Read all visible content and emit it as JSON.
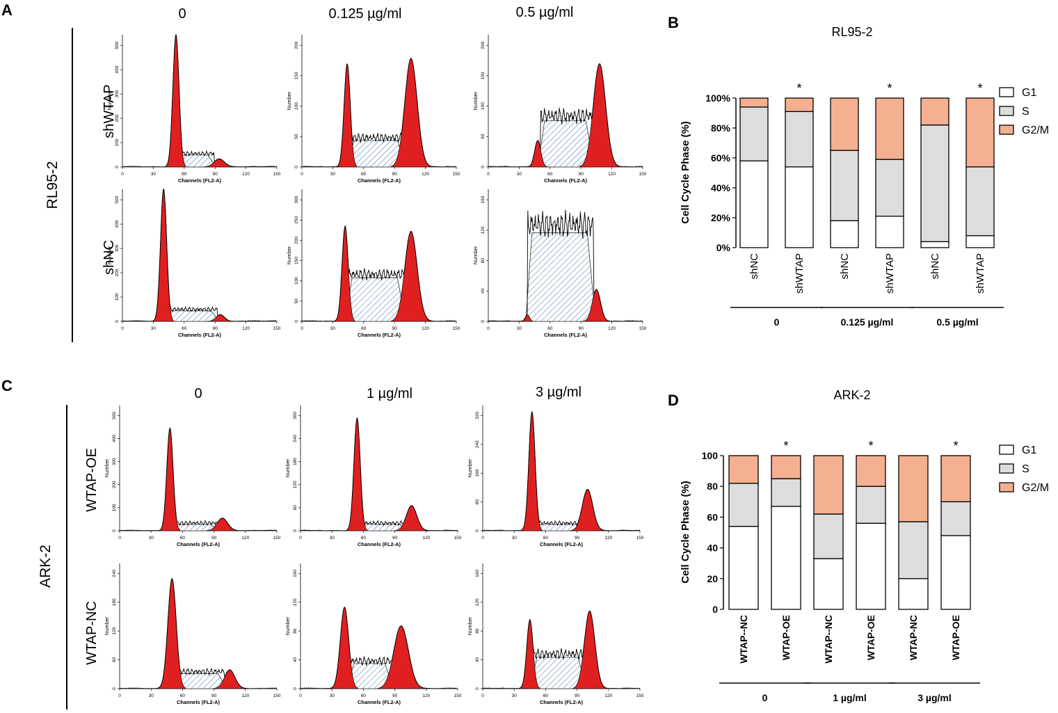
{
  "panels": {
    "a": {
      "letter": "A",
      "cell_line": "RL95-2",
      "columns": [
        "0",
        "0.125 µg/ml",
        "0.5 µg/ml"
      ],
      "rows": [
        "shWTAP",
        "shNC"
      ],
      "histograms": [
        {
          "row": 0,
          "col": 0,
          "peaks": [
            {
              "c": 52,
              "h": 1.0,
              "w": 3
            },
            {
              "c": 94,
              "h": 0.06,
              "w": 5
            }
          ],
          "plateau": 0.09,
          "sph": 0.02,
          "xticks": [
            0,
            30,
            60,
            90,
            120,
            150
          ],
          "yticks": [
            0,
            100,
            200,
            300,
            400,
            500
          ]
        },
        {
          "row": 0,
          "col": 1,
          "peaks": [
            {
              "c": 44,
              "h": 0.78,
              "w": 3
            },
            {
              "c": 106,
              "h": 0.82,
              "w": 6
            }
          ],
          "plateau": 0.2,
          "sph": 0.04,
          "xticks": [
            0,
            30,
            60,
            90,
            120,
            150
          ],
          "yticks": [
            0,
            50,
            100,
            150,
            200
          ]
        },
        {
          "row": 0,
          "col": 2,
          "peaks": [
            {
              "c": 48,
              "h": 0.2,
              "w": 3
            },
            {
              "c": 108,
              "h": 0.78,
              "w": 6
            }
          ],
          "plateau": 0.35,
          "sph": 0.07,
          "xticks": [
            0,
            30,
            60,
            90,
            120,
            150
          ],
          "yticks": [
            0,
            50,
            100,
            150,
            200
          ]
        },
        {
          "row": 1,
          "col": 0,
          "peaks": [
            {
              "c": 40,
              "h": 1.0,
              "w": 3
            },
            {
              "c": 95,
              "h": 0.05,
              "w": 4
            }
          ],
          "plateau": 0.08,
          "sph": 0.02,
          "xticks": [
            0,
            30,
            60,
            90,
            120,
            150
          ],
          "yticks": [
            0,
            100,
            200,
            300,
            400,
            500
          ]
        },
        {
          "row": 1,
          "col": 1,
          "peaks": [
            {
              "c": 42,
              "h": 0.72,
              "w": 3
            },
            {
              "c": 106,
              "h": 0.68,
              "w": 6
            }
          ],
          "plateau": 0.33,
          "sph": 0.05,
          "xticks": [
            0,
            30,
            60,
            90,
            120,
            150
          ],
          "yticks": [
            0,
            50,
            100,
            150,
            200,
            250,
            300
          ]
        },
        {
          "row": 1,
          "col": 2,
          "peaks": [
            {
              "c": 38,
              "h": 0.05,
              "w": 2
            },
            {
              "c": 105,
              "h": 0.24,
              "w": 4
            }
          ],
          "plateau": 0.67,
          "sph": 0.12,
          "xticks": [
            0,
            30,
            60,
            90,
            120,
            150
          ],
          "yticks": [
            0,
            40,
            80,
            120,
            160
          ]
        }
      ],
      "axis": {
        "xlabel": "Channels (FL2-A)",
        "ylabel": "Number"
      }
    },
    "b": {
      "letter": "B",
      "chart_data": {
        "type": "bar",
        "stacked": true,
        "title": "RL95-2",
        "ylabel": "Cell Cycle Phase (%)",
        "ylim": [
          0,
          100
        ],
        "yticks": [
          "0%",
          "20%",
          "40%",
          "60%",
          "80%",
          "100%"
        ],
        "categories": [
          "shNC",
          "shWTAP",
          "shNC",
          "shWTAP",
          "shNC",
          "shWTAP"
        ],
        "groups": [
          "0",
          "0.125 µg/ml",
          "0.5 µg/ml"
        ],
        "series": [
          {
            "name": "G1",
            "color": "#ffffff",
            "values": [
              58,
              54,
              18,
              21,
              4,
              8
            ]
          },
          {
            "name": "S",
            "color": "#dcdddd",
            "values": [
              36,
              37,
              47,
              38,
              78,
              46
            ]
          },
          {
            "name": "G2/M",
            "color": "#f4b091",
            "values": [
              6,
              9,
              35,
              41,
              18,
              46
            ]
          }
        ],
        "significance": [
          "",
          "*",
          "",
          "*",
          "",
          "*"
        ]
      }
    },
    "c": {
      "letter": "C",
      "cell_line": "ARK-2",
      "columns": [
        "0",
        "1 µg/ml",
        "3 µg/ml"
      ],
      "rows": [
        "WTAP-OE",
        "WTAP-NC"
      ],
      "histograms": [
        {
          "row": 0,
          "col": 0,
          "peaks": [
            {
              "c": 48,
              "h": 0.82,
              "w": 3
            },
            {
              "c": 98,
              "h": 0.1,
              "w": 5
            }
          ],
          "plateau": 0.05,
          "sph": 0.02,
          "xticks": [
            0,
            30,
            60,
            90,
            120,
            150
          ],
          "yticks": [
            0,
            100,
            200,
            300,
            400,
            500
          ]
        },
        {
          "row": 0,
          "col": 1,
          "peaks": [
            {
              "c": 54,
              "h": 0.9,
              "w": 3
            },
            {
              "c": 106,
              "h": 0.2,
              "w": 5
            }
          ],
          "plateau": 0.05,
          "sph": 0.02,
          "xticks": [
            0,
            30,
            60,
            90,
            120,
            150
          ],
          "yticks": [
            0,
            60,
            120,
            180,
            240,
            300
          ]
        },
        {
          "row": 0,
          "col": 2,
          "peaks": [
            {
              "c": 47,
              "h": 0.95,
              "w": 3
            },
            {
              "c": 100,
              "h": 0.33,
              "w": 5
            }
          ],
          "plateau": 0.05,
          "sph": 0.02,
          "xticks": [
            0,
            30,
            60,
            90,
            120,
            150
          ],
          "yticks": [
            0,
            80,
            160,
            240,
            320
          ]
        },
        {
          "row": 1,
          "col": 0,
          "peaks": [
            {
              "c": 50,
              "h": 0.88,
              "w": 4
            },
            {
              "c": 105,
              "h": 0.15,
              "w": 5
            }
          ],
          "plateau": 0.12,
          "sph": 0.03,
          "xticks": [
            0,
            30,
            60,
            90,
            120,
            150
          ],
          "yticks": [
            0,
            60,
            120,
            180,
            240
          ]
        },
        {
          "row": 1,
          "col": 1,
          "peaks": [
            {
              "c": 42,
              "h": 0.65,
              "w": 4
            },
            {
              "c": 96,
              "h": 0.5,
              "w": 7
            }
          ],
          "plateau": 0.2,
          "sph": 0.04,
          "xticks": [
            0,
            30,
            60,
            90,
            120,
            150
          ],
          "yticks": [
            0,
            40,
            80,
            120,
            160
          ]
        },
        {
          "row": 1,
          "col": 2,
          "peaks": [
            {
              "c": 45,
              "h": 0.55,
              "w": 3
            },
            {
              "c": 102,
              "h": 0.62,
              "w": 5
            }
          ],
          "plateau": 0.25,
          "sph": 0.05,
          "xticks": [
            0,
            30,
            60,
            90,
            120,
            150
          ],
          "yticks": [
            0,
            40,
            80,
            120,
            160
          ]
        }
      ],
      "axis": {
        "xlabel": "Channels (FL2-A)",
        "ylabel": "Number"
      }
    },
    "d": {
      "letter": "D",
      "chart_data": {
        "type": "bar",
        "stacked": true,
        "title": "ARK-2",
        "ylabel": "Cell Cycle Phase (%)",
        "ylim": [
          0,
          100
        ],
        "yticks": [
          "0",
          "20",
          "40",
          "60",
          "80",
          "100"
        ],
        "categories": [
          "WTAP--NC",
          "WTAP-OE",
          "WTAP--NC",
          "WTAP-OE",
          "WTAP-NC",
          "WTAP-OE"
        ],
        "groups": [
          "0",
          "1 µg/ml",
          "3 µg/ml"
        ],
        "series": [
          {
            "name": "G1",
            "color": "#ffffff",
            "values": [
              54,
              67,
              33,
              56,
              20,
              48
            ]
          },
          {
            "name": "S",
            "color": "#dcdddd",
            "values": [
              28,
              18,
              29,
              24,
              37,
              22
            ]
          },
          {
            "name": "G2/M",
            "color": "#f4b091",
            "values": [
              18,
              15,
              38,
              20,
              43,
              30
            ]
          }
        ],
        "significance": [
          "",
          "*",
          "",
          "*",
          "",
          "*"
        ]
      }
    }
  }
}
